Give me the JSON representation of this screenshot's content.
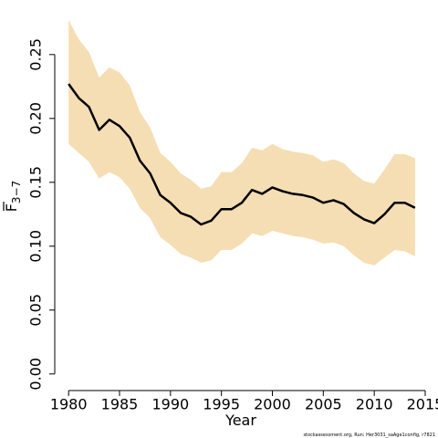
{
  "chart_data": {
    "type": "line",
    "x_label": "Year",
    "y_label": {
      "symbol": "F",
      "subscript": "3−7"
    },
    "footnote": "stockassessment.org, Run: Her3031_saAge1config, r7821",
    "x": [
      1980,
      1981,
      1982,
      1983,
      1984,
      1985,
      1986,
      1987,
      1988,
      1989,
      1990,
      1991,
      1992,
      1993,
      1994,
      1995,
      1996,
      1997,
      1998,
      1999,
      2000,
      2001,
      2002,
      2003,
      2004,
      2005,
      2006,
      2007,
      2008,
      2009,
      2010,
      2011,
      2012,
      2013,
      2014
    ],
    "values": [
      0.227,
      0.216,
      0.209,
      0.191,
      0.199,
      0.194,
      0.185,
      0.167,
      0.157,
      0.14,
      0.134,
      0.126,
      0.123,
      0.117,
      0.12,
      0.129,
      0.129,
      0.134,
      0.144,
      0.141,
      0.146,
      0.143,
      0.141,
      0.14,
      0.138,
      0.134,
      0.136,
      0.133,
      0.126,
      0.121,
      0.118,
      0.125,
      0.134,
      0.134,
      0.13
    ],
    "upper": [
      0.277,
      0.262,
      0.252,
      0.232,
      0.24,
      0.236,
      0.226,
      0.205,
      0.193,
      0.173,
      0.166,
      0.157,
      0.152,
      0.145,
      0.147,
      0.158,
      0.158,
      0.165,
      0.177,
      0.175,
      0.18,
      0.176,
      0.174,
      0.173,
      0.171,
      0.166,
      0.168,
      0.165,
      0.157,
      0.151,
      0.149,
      0.16,
      0.172,
      0.172,
      0.169
    ],
    "lower": [
      0.18,
      0.173,
      0.166,
      0.153,
      0.158,
      0.154,
      0.145,
      0.13,
      0.122,
      0.107,
      0.101,
      0.094,
      0.091,
      0.087,
      0.089,
      0.097,
      0.097,
      0.102,
      0.11,
      0.108,
      0.112,
      0.11,
      0.108,
      0.107,
      0.105,
      0.102,
      0.103,
      0.1,
      0.093,
      0.087,
      0.085,
      0.091,
      0.097,
      0.096,
      0.092
    ],
    "color": "#000000",
    "band_color": "#f5deb3",
    "xlim": [
      1978.64,
      2015.36
    ],
    "xticks": [
      1980,
      1985,
      1990,
      1995,
      2000,
      2005,
      2010,
      2015
    ],
    "ylim": [
      -0.013,
      0.287
    ],
    "yticks": [
      {
        "value": 0,
        "label": "0.00"
      },
      0.05,
      {
        "value": 0.1,
        "label": "0.10"
      },
      0.15,
      {
        "value": 0.2,
        "label": "0.20"
      },
      0.25
    ]
  }
}
